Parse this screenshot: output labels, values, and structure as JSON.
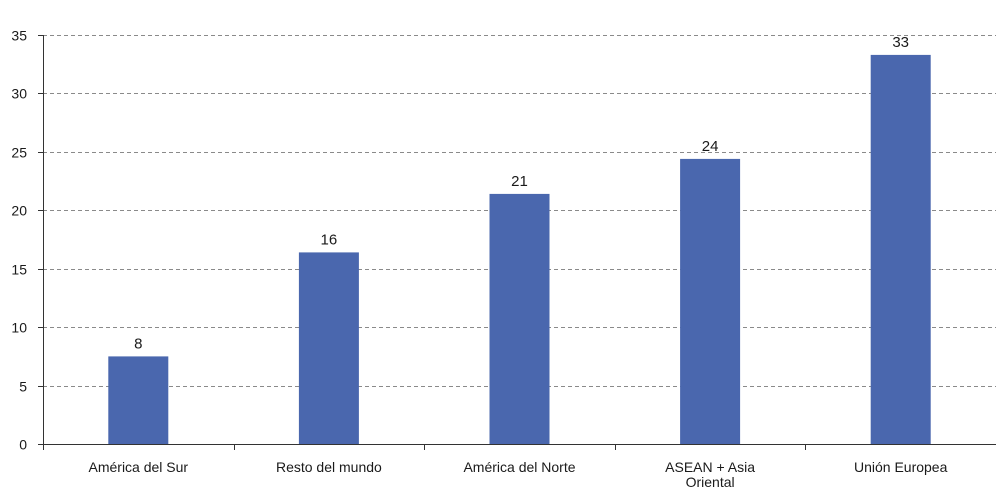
{
  "chart_data": {
    "type": "bar",
    "title": "",
    "xlabel": "",
    "ylabel": "",
    "categories": [
      "América del Sur",
      "Resto del mundo",
      "América del Norte",
      "ASEAN + Asia Oriental",
      "Unión Europea"
    ],
    "category_lines": [
      [
        "América del Sur"
      ],
      [
        "Resto del mundo"
      ],
      [
        "América del Norte"
      ],
      [
        "ASEAN + Asia",
        "Oriental"
      ],
      [
        "Unión Europea"
      ]
    ],
    "values": [
      7.5,
      16.4,
      21.4,
      24.4,
      33.3
    ],
    "data_labels": [
      "8",
      "16",
      "21",
      "24",
      "33"
    ],
    "ylim": [
      0,
      35
    ],
    "yticks": [
      0,
      5,
      10,
      15,
      20,
      25,
      30,
      35
    ],
    "grid": true,
    "legend": "none",
    "bar_color": "#4a67ae",
    "grid_color": "#8a8a8a",
    "axis_color": "#333333"
  }
}
